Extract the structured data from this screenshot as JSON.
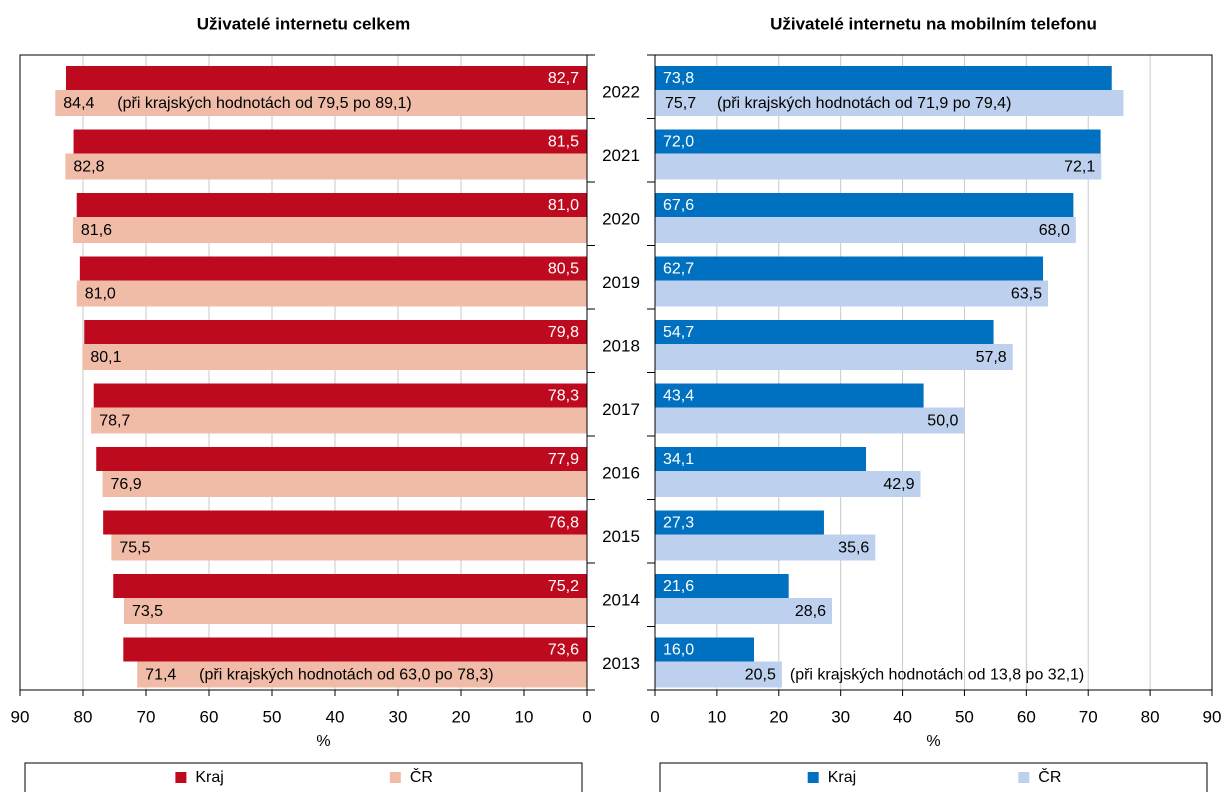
{
  "chart_data": [
    {
      "type": "bar",
      "orientation": "horizontal",
      "title": "Uživatelé internetu celkem",
      "x_label": "%",
      "categories": [
        "2022",
        "2021",
        "2020",
        "2019",
        "2018",
        "2017",
        "2016",
        "2015",
        "2014",
        "2013"
      ],
      "xlim": [
        0,
        90
      ],
      "x_reversed": true,
      "xticks": [
        0,
        10,
        20,
        30,
        40,
        50,
        60,
        70,
        80,
        90
      ],
      "grid": true,
      "series": [
        {
          "name": "Kraj",
          "color": "#be0a1e",
          "values": [
            82.7,
            81.5,
            81.0,
            80.5,
            79.8,
            78.3,
            77.9,
            76.8,
            75.2,
            73.6
          ],
          "value_labels": [
            "82,7",
            "81,5",
            "81,0",
            "80,5",
            "79,8",
            "78,3",
            "77,9",
            "76,8",
            "75,2",
            "73,6"
          ]
        },
        {
          "name": "ČR",
          "color": "#f0bca8",
          "values": [
            84.4,
            82.8,
            81.6,
            81.0,
            80.1,
            78.7,
            76.9,
            75.5,
            73.5,
            71.4
          ],
          "value_labels": [
            "84,4",
            "82,8",
            "81,6",
            "81,0",
            "80,1",
            "78,7",
            "76,9",
            "75,5",
            "73,5",
            "71,4"
          ],
          "annotations": [
            "(při krajských hodnotách od 79,5 po 89,1)",
            null,
            null,
            null,
            null,
            null,
            null,
            null,
            null,
            "(při krajských hodnotách od 63,0 po 78,3)"
          ]
        }
      ]
    },
    {
      "type": "bar",
      "orientation": "horizontal",
      "title": "Uživatelé internetu na mobilním telefonu",
      "x_label": "%",
      "xlim": [
        0,
        90
      ],
      "x_reversed": false,
      "xticks": [
        0,
        10,
        20,
        30,
        40,
        50,
        60,
        70,
        80,
        90
      ],
      "grid": true,
      "series": [
        {
          "name": "Kraj",
          "color": "#0070c0",
          "values": [
            73.8,
            72.0,
            67.6,
            62.7,
            54.7,
            43.4,
            34.1,
            27.3,
            21.6,
            16.0
          ],
          "value_labels": [
            "73,8",
            "72,0",
            "67,6",
            "62,7",
            "54,7",
            "43,4",
            "34,1",
            "27,3",
            "21,6",
            "16,0"
          ]
        },
        {
          "name": "ČR",
          "color": "#bdd0ee",
          "values": [
            75.7,
            72.1,
            68.0,
            63.5,
            57.8,
            50.0,
            42.9,
            35.6,
            28.6,
            20.5
          ],
          "value_labels": [
            "75,7",
            "72,1",
            "68,0",
            "63,5",
            "57,8",
            "50,0",
            "42,9",
            "35,6",
            "28,6",
            "20,5"
          ],
          "annotations": [
            "(při krajských hodnotách od 71,9 po 79,4)",
            null,
            null,
            null,
            null,
            null,
            null,
            null,
            null,
            "(při krajských hodnotách od 13,8 po 32,1)"
          ]
        }
      ]
    }
  ]
}
